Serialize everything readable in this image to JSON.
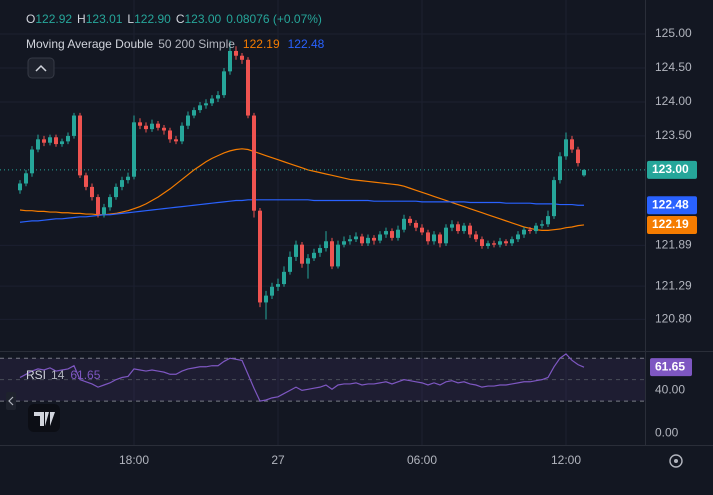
{
  "chart_data": [
    {
      "type": "candlestick",
      "ohlc_legend": [
        {
          "key": "O",
          "value": "122.92"
        },
        {
          "key": "H",
          "value": "123.01"
        },
        {
          "key": "L",
          "value": "122.90"
        },
        {
          "key": "C",
          "value": "123.00"
        }
      ],
      "change": "0.08076 (+0.07%)",
      "indicator": {
        "name": "Moving Average Double",
        "params": "50 200 Simple"
      },
      "categories": [
        null,
        null,
        null,
        null,
        null,
        null,
        null,
        null,
        null,
        null,
        null,
        null,
        null,
        null,
        null,
        null,
        null,
        null,
        null,
        "18:00",
        null,
        null,
        null,
        null,
        null,
        null,
        null,
        null,
        null,
        null,
        null,
        null,
        null,
        null,
        null,
        null,
        null,
        null,
        null,
        null,
        null,
        null,
        null,
        "27",
        null,
        null,
        null,
        null,
        null,
        null,
        null,
        null,
        null,
        null,
        null,
        null,
        null,
        null,
        null,
        null,
        null,
        null,
        null,
        null,
        null,
        null,
        null,
        "06:00",
        null,
        null,
        null,
        null,
        null,
        null,
        null,
        null,
        null,
        null,
        null,
        null,
        null,
        null,
        null,
        null,
        null,
        null,
        null,
        null,
        null,
        null,
        null,
        "12:00",
        null,
        null,
        null
      ],
      "open": [
        122.7,
        122.8,
        122.95,
        123.3,
        123.45,
        123.4,
        123.48,
        123.38,
        123.42,
        123.5,
        123.8,
        122.92,
        122.75,
        122.6,
        122.35,
        122.45,
        122.6,
        122.75,
        122.85,
        122.9,
        123.7,
        123.65,
        123.6,
        123.68,
        123.62,
        123.58,
        123.45,
        123.42,
        123.65,
        123.8,
        123.88,
        123.95,
        123.98,
        124.05,
        124.1,
        124.45,
        124.75,
        124.68,
        124.62,
        123.8,
        122.4,
        121.05,
        121.15,
        121.28,
        121.32,
        121.5,
        121.72,
        121.9,
        121.62,
        121.7,
        121.78,
        121.85,
        121.95,
        121.58,
        121.9,
        121.95,
        121.98,
        122.02,
        121.92,
        122.0,
        121.96,
        122.05,
        122.1,
        122.0,
        122.12,
        122.28,
        122.22,
        122.15,
        122.08,
        121.95,
        122.05,
        121.92,
        122.15,
        122.2,
        122.1,
        122.18,
        122.05,
        121.98,
        121.88,
        121.92,
        121.9,
        121.95,
        121.92,
        121.98,
        122.05,
        122.12,
        122.1,
        122.18,
        122.2,
        122.32,
        122.85,
        123.2,
        123.45,
        123.3,
        122.92
      ],
      "high": [
        122.85,
        123.0,
        123.35,
        123.52,
        123.5,
        123.52,
        123.52,
        123.46,
        123.55,
        123.84,
        123.84,
        122.96,
        122.8,
        122.64,
        122.5,
        122.64,
        122.8,
        122.9,
        122.96,
        123.8,
        123.76,
        123.7,
        123.74,
        123.72,
        123.66,
        123.62,
        123.5,
        123.7,
        123.86,
        123.92,
        124.0,
        124.04,
        124.1,
        124.16,
        124.5,
        124.9,
        124.82,
        124.72,
        124.66,
        123.84,
        122.44,
        121.22,
        121.34,
        121.4,
        121.58,
        121.8,
        121.96,
        121.94,
        121.76,
        121.84,
        121.9,
        122.1,
        122.0,
        121.96,
        122.02,
        122.04,
        122.08,
        122.06,
        122.05,
        122.04,
        122.1,
        122.15,
        122.14,
        122.18,
        122.34,
        122.32,
        122.26,
        122.2,
        122.12,
        122.1,
        122.08,
        122.2,
        122.26,
        122.24,
        122.22,
        122.22,
        122.1,
        122.02,
        121.96,
        121.96,
        122.0,
        121.98,
        122.02,
        122.1,
        122.16,
        122.16,
        122.22,
        122.26,
        122.4,
        122.9,
        123.26,
        123.55,
        123.5,
        123.34,
        123.01
      ],
      "low": [
        122.65,
        122.76,
        122.9,
        123.26,
        123.35,
        123.36,
        123.34,
        123.34,
        123.38,
        123.46,
        122.88,
        122.7,
        122.55,
        122.3,
        122.3,
        122.4,
        122.56,
        122.7,
        122.8,
        122.86,
        123.6,
        123.55,
        123.56,
        123.58,
        123.52,
        123.4,
        123.38,
        123.38,
        123.6,
        123.76,
        123.84,
        123.9,
        123.94,
        124.0,
        124.06,
        124.4,
        124.62,
        124.56,
        123.76,
        122.3,
        120.98,
        120.8,
        121.1,
        121.22,
        121.28,
        121.46,
        121.66,
        121.56,
        121.4,
        121.66,
        121.72,
        121.8,
        121.54,
        121.55,
        121.86,
        121.9,
        121.94,
        121.88,
        121.88,
        121.9,
        121.92,
        122.0,
        121.96,
        121.96,
        122.08,
        122.18,
        122.1,
        122.04,
        121.9,
        121.9,
        121.86,
        121.88,
        122.1,
        122.06,
        122.06,
        122.0,
        121.94,
        121.84,
        121.84,
        121.86,
        121.86,
        121.88,
        121.88,
        121.94,
        122.0,
        122.06,
        122.06,
        122.14,
        122.16,
        122.28,
        122.8,
        123.15,
        123.25,
        123.05,
        122.9
      ],
      "close": [
        122.8,
        122.95,
        123.3,
        123.45,
        123.4,
        123.48,
        123.38,
        123.42,
        123.5,
        123.8,
        122.92,
        122.75,
        122.6,
        122.35,
        122.45,
        122.6,
        122.75,
        122.85,
        122.9,
        123.7,
        123.65,
        123.6,
        123.68,
        123.62,
        123.58,
        123.45,
        123.42,
        123.65,
        123.8,
        123.88,
        123.95,
        123.98,
        124.05,
        124.1,
        124.45,
        124.75,
        124.68,
        124.62,
        123.8,
        122.4,
        121.05,
        121.15,
        121.28,
        121.32,
        121.5,
        121.72,
        121.9,
        121.62,
        121.7,
        121.78,
        121.85,
        121.95,
        121.58,
        121.9,
        121.95,
        121.98,
        122.02,
        121.92,
        122.0,
        121.96,
        122.05,
        122.1,
        122.0,
        122.12,
        122.28,
        122.22,
        122.15,
        122.08,
        121.95,
        122.05,
        121.92,
        122.15,
        122.2,
        122.1,
        122.18,
        122.05,
        121.98,
        121.88,
        121.92,
        121.9,
        121.95,
        121.92,
        121.98,
        122.05,
        122.12,
        122.1,
        122.18,
        122.2,
        122.32,
        122.85,
        123.2,
        123.45,
        123.3,
        123.1,
        123.0
      ],
      "last_price_label": "123.00",
      "up_color": "#26a69a",
      "down_color": "#ef5350",
      "series": [
        {
          "color": "#f57c00",
          "value_label": "122.19",
          "values": [
            122.41,
            122.4,
            122.4,
            122.39,
            122.39,
            122.38,
            122.38,
            122.37,
            122.37,
            122.36,
            122.36,
            122.35,
            122.35,
            122.34,
            122.34,
            122.35,
            122.36,
            122.38,
            122.4,
            122.43,
            122.46,
            122.5,
            122.55,
            122.6,
            122.66,
            122.72,
            122.79,
            122.86,
            122.93,
            123.0,
            123.06,
            123.12,
            123.17,
            123.21,
            123.25,
            123.28,
            123.3,
            123.31,
            123.3,
            123.27,
            123.24,
            123.21,
            123.18,
            123.15,
            123.12,
            123.09,
            123.06,
            123.03,
            123.0,
            122.98,
            122.96,
            122.94,
            122.92,
            122.9,
            122.88,
            122.86,
            122.85,
            122.84,
            122.83,
            122.82,
            122.81,
            122.8,
            122.79,
            122.78,
            122.76,
            122.73,
            122.7,
            122.67,
            122.64,
            122.61,
            122.58,
            122.55,
            122.52,
            122.49,
            122.46,
            122.43,
            122.4,
            122.37,
            122.34,
            122.31,
            122.28,
            122.25,
            122.22,
            122.19,
            122.16,
            122.14,
            122.12,
            122.11,
            122.11,
            122.12,
            122.13,
            122.15,
            122.16,
            122.18,
            122.19
          ]
        },
        {
          "color": "#2962ff",
          "value_label": "122.48",
          "values": [
            122.23,
            122.24,
            122.25,
            122.25,
            122.26,
            122.27,
            122.28,
            122.28,
            122.29,
            122.3,
            122.31,
            122.31,
            122.32,
            122.33,
            122.34,
            122.34,
            122.35,
            122.36,
            122.37,
            122.38,
            122.39,
            122.4,
            122.41,
            122.42,
            122.43,
            122.44,
            122.45,
            122.46,
            122.47,
            122.48,
            122.49,
            122.5,
            122.51,
            122.52,
            122.53,
            122.54,
            122.55,
            122.55,
            122.56,
            122.56,
            122.56,
            122.56,
            122.56,
            122.56,
            122.56,
            122.56,
            122.56,
            122.56,
            122.56,
            122.55,
            122.55,
            122.55,
            122.55,
            122.55,
            122.55,
            122.55,
            122.55,
            122.55,
            122.55,
            122.54,
            122.54,
            122.54,
            122.54,
            122.54,
            122.54,
            122.54,
            122.54,
            122.53,
            122.53,
            122.53,
            122.53,
            122.53,
            122.53,
            122.53,
            122.53,
            122.52,
            122.52,
            122.52,
            122.52,
            122.52,
            122.52,
            122.51,
            122.51,
            122.51,
            122.51,
            122.51,
            122.5,
            122.5,
            122.5,
            122.5,
            122.49,
            122.49,
            122.49,
            122.48,
            122.48
          ]
        }
      ],
      "ylim": [
        120.35,
        125.5
      ],
      "yticks": [
        {
          "value": 125,
          "label": "125.00"
        },
        {
          "value": 124.5,
          "label": "124.50"
        },
        {
          "value": 124,
          "label": "124.00"
        },
        {
          "value": 123.5,
          "label": "123.50"
        },
        121.89,
        121.29,
        {
          "value": 120.8,
          "label": "120.80"
        }
      ],
      "grid": true
    },
    {
      "type": "line",
      "name": "RSI",
      "params": "14",
      "value_label": "61.65",
      "color": "#7e57c2",
      "values": [
        52,
        55,
        58,
        60,
        59,
        61,
        58,
        59,
        60,
        63,
        50,
        48,
        46,
        43,
        45,
        47,
        50,
        52,
        53,
        60,
        59,
        58,
        59,
        58,
        57,
        55,
        55,
        58,
        60,
        61,
        62,
        62,
        63,
        63,
        67,
        70,
        69,
        68,
        55,
        42,
        30,
        31,
        33,
        34,
        37,
        40,
        43,
        40,
        41,
        42,
        43,
        45,
        41,
        45,
        46,
        46,
        47,
        45,
        46,
        46,
        47,
        48,
        46,
        48,
        50,
        49,
        48,
        47,
        45,
        47,
        45,
        48,
        49,
        47,
        48,
        46,
        45,
        43,
        44,
        44,
        45,
        45,
        46,
        47,
        48,
        48,
        49,
        50,
        52,
        62,
        70,
        74,
        68,
        64,
        61.65
      ],
      "bands": [
        30,
        70
      ],
      "midline": 50,
      "ylim": [
        -11,
        73
      ],
      "yticks": [
        {
          "value": 40,
          "label": "40.00"
        },
        {
          "value": 0,
          "label": "0.00"
        }
      ]
    }
  ]
}
